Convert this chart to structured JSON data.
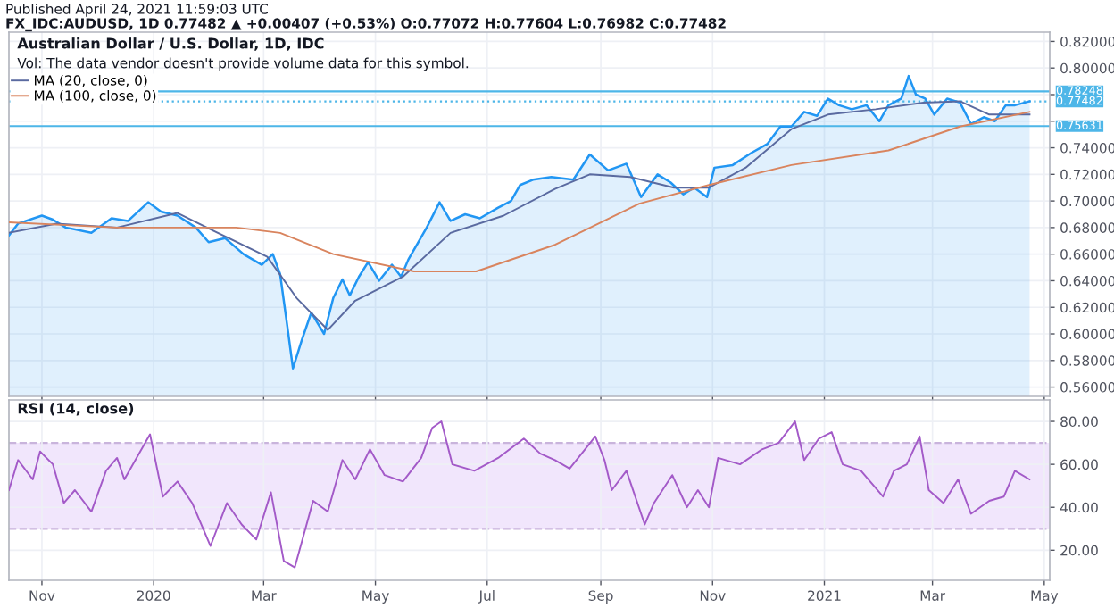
{
  "chart_data": [
    {
      "type": "area",
      "title": "Australian Dollar / U.S. Dollar, 1D, IDC",
      "subtitle": "Vol: The data vendor doesn't provide volume data for this symbol.",
      "annotations": [
        "Published April 24, 2021 11:59:03 UTC",
        "FX_IDC:AUDUSD, 1D 0.77482 ▲ +0.00407 (+0.53%) O:0.77072 H:0.77604 L:0.76982 C:0.77482"
      ],
      "series": [
        {
          "type": "area",
          "color": "#2196f3",
          "x": [
            "2019-10-14",
            "2019-10-19",
            "2019-11-01",
            "2019-11-07",
            "2019-11-14",
            "2019-11-28",
            "2019-12-09",
            "2019-12-18",
            "2019-12-29",
            "2020-01-05",
            "2020-01-14",
            "2020-01-24",
            "2020-01-31",
            "2020-02-09",
            "2020-02-19",
            "2020-02-29",
            "2020-03-06",
            "2020-03-10",
            "2020-03-14",
            "2020-03-17",
            "2020-03-22",
            "2020-03-27",
            "2020-04-03",
            "2020-04-08",
            "2020-04-13",
            "2020-04-17",
            "2020-04-22",
            "2020-04-27",
            "2020-05-03",
            "2020-05-10",
            "2020-05-15",
            "2020-05-19",
            "2020-05-29",
            "2020-06-05",
            "2020-06-11",
            "2020-06-19",
            "2020-06-27",
            "2020-07-07",
            "2020-07-14",
            "2020-07-19",
            "2020-07-26",
            "2020-08-05",
            "2020-08-17",
            "2020-08-26",
            "2020-09-05",
            "2020-09-15",
            "2020-09-23",
            "2020-10-02",
            "2020-10-09",
            "2020-10-16",
            "2020-10-22",
            "2020-10-29",
            "2020-11-02",
            "2020-11-12",
            "2020-11-22",
            "2020-12-01",
            "2020-12-08",
            "2020-12-14",
            "2020-12-21",
            "2020-12-28",
            "2021-01-03",
            "2021-01-09",
            "2021-01-16",
            "2021-01-24",
            "2021-01-31",
            "2021-02-05",
            "2021-02-12",
            "2021-02-16",
            "2021-02-20",
            "2021-02-25",
            "2021-03-02",
            "2021-03-09",
            "2021-03-16",
            "2021-03-22",
            "2021-03-29",
            "2021-04-04",
            "2021-04-10",
            "2021-04-15",
            "2021-04-23"
          ],
          "values": [
            0.674,
            0.683,
            0.689,
            0.686,
            0.68,
            0.676,
            0.687,
            0.685,
            0.699,
            0.692,
            0.689,
            0.68,
            0.669,
            0.672,
            0.66,
            0.652,
            0.66,
            0.645,
            0.605,
            0.574,
            0.596,
            0.616,
            0.6,
            0.627,
            0.641,
            0.629,
            0.643,
            0.654,
            0.64,
            0.652,
            0.643,
            0.656,
            0.68,
            0.699,
            0.685,
            0.69,
            0.687,
            0.695,
            0.7,
            0.712,
            0.716,
            0.718,
            0.716,
            0.735,
            0.723,
            0.728,
            0.703,
            0.72,
            0.714,
            0.705,
            0.71,
            0.703,
            0.725,
            0.727,
            0.736,
            0.743,
            0.756,
            0.756,
            0.767,
            0.764,
            0.777,
            0.772,
            0.769,
            0.772,
            0.76,
            0.772,
            0.777,
            0.794,
            0.78,
            0.777,
            0.765,
            0.777,
            0.774,
            0.758,
            0.763,
            0.76,
            0.772,
            0.772,
            0.775
          ]
        },
        {
          "type": "line",
          "name": "MA (20, close, 0)",
          "color": "#5a6aa0",
          "x": [
            "2019-10-14",
            "2019-11-09",
            "2019-12-12",
            "2020-01-14",
            "2020-02-02",
            "2020-03-03",
            "2020-03-19",
            "2020-04-05",
            "2020-04-20",
            "2020-05-16",
            "2020-06-11",
            "2020-07-10",
            "2020-08-07",
            "2020-08-26",
            "2020-09-17",
            "2020-10-11",
            "2020-10-30",
            "2020-11-19",
            "2020-12-14",
            "2021-01-03",
            "2021-01-29",
            "2021-02-24",
            "2021-03-16",
            "2021-04-01",
            "2021-04-23"
          ],
          "values": [
            0.676,
            0.683,
            0.68,
            0.691,
            0.678,
            0.658,
            0.627,
            0.603,
            0.625,
            0.643,
            0.676,
            0.689,
            0.709,
            0.72,
            0.718,
            0.71,
            0.71,
            0.725,
            0.754,
            0.765,
            0.769,
            0.774,
            0.775,
            0.765,
            0.765
          ]
        },
        {
          "type": "line",
          "name": "MA (100, close, 0)",
          "color": "#d9845e",
          "x": [
            "2019-10-14",
            "2019-12-12",
            "2020-02-15",
            "2020-03-10",
            "2020-04-08",
            "2020-05-22",
            "2020-06-25",
            "2020-08-07",
            "2020-09-22",
            "2020-10-30",
            "2020-12-14",
            "2021-02-05",
            "2021-03-16",
            "2021-04-23"
          ],
          "values": [
            0.684,
            0.68,
            0.68,
            0.676,
            0.66,
            0.647,
            0.647,
            0.667,
            0.698,
            0.712,
            0.727,
            0.738,
            0.756,
            0.767
          ]
        }
      ],
      "xlim": [
        "2019-10-14",
        "2021-05-04"
      ],
      "xticks": [
        {
          "value": "2019-11-01",
          "label": null
        },
        {
          "value": "2020-01-01",
          "label": null
        },
        {
          "value": "2020-03-01",
          "label": null
        },
        {
          "value": "2020-05-01",
          "label": null
        },
        {
          "value": "2020-07-01",
          "label": null
        },
        {
          "value": "2020-09-01",
          "label": null
        },
        {
          "value": "2020-11-01",
          "label": null
        },
        {
          "value": "2021-01-01",
          "label": null
        },
        {
          "value": "2021-03-01",
          "label": null
        },
        {
          "value": "2021-05-01",
          "label": null
        }
      ],
      "ylim": [
        0.553,
        0.827
      ],
      "yticks": [
        {
          "value": 0.56,
          "label": "0.56000"
        },
        {
          "value": 0.58,
          "label": "0.58000"
        },
        {
          "value": 0.6,
          "label": "0.60000"
        },
        {
          "value": 0.62,
          "label": "0.62000"
        },
        {
          "value": 0.64,
          "label": "0.64000"
        },
        {
          "value": 0.66,
          "label": "0.66000"
        },
        {
          "value": 0.68,
          "label": "0.68000"
        },
        {
          "value": 0.7,
          "label": "0.70000"
        },
        {
          "value": 0.72,
          "label": "0.72000"
        },
        {
          "value": 0.74,
          "label": "0.74000"
        },
        {
          "value": 0.76,
          "label": null
        },
        {
          "value": 0.78,
          "label": null
        },
        {
          "value": 0.8,
          "label": "0.80000"
        },
        {
          "value": 0.82,
          "label": "0.82000"
        }
      ],
      "ref_lines": [
        {
          "axis": "y",
          "value": 0.78248,
          "label": "0.78248",
          "color": "#4db6e8",
          "line_style": "solid"
        },
        {
          "axis": "y",
          "value": 0.77482,
          "label": "0.77482",
          "color": "#4db6e8",
          "line_style": "dotted"
        },
        {
          "axis": "y",
          "value": 0.75631,
          "label": "0.75631",
          "color": "#4db6e8",
          "line_style": "solid"
        }
      ],
      "grid": true,
      "legend": "top left",
      "tick_labels": "y"
    },
    {
      "type": "line",
      "title": "RSI (14, close)",
      "series": [
        {
          "color": "#a35ac8",
          "x": [
            "2019-10-14",
            "2019-10-19",
            "2019-10-27",
            "2019-10-31",
            "2019-11-07",
            "2019-11-13",
            "2019-11-19",
            "2019-11-28",
            "2019-12-06",
            "2019-12-12",
            "2019-12-16",
            "2019-12-30",
            "2020-01-06",
            "2020-01-14",
            "2020-01-22",
            "2020-02-01",
            "2020-02-10",
            "2020-02-18",
            "2020-02-26",
            "2020-03-05",
            "2020-03-12",
            "2020-03-18",
            "2020-03-28",
            "2020-04-05",
            "2020-04-13",
            "2020-04-20",
            "2020-04-28",
            "2020-05-06",
            "2020-05-16",
            "2020-05-26",
            "2020-06-01",
            "2020-06-06",
            "2020-06-12",
            "2020-06-24",
            "2020-07-07",
            "2020-07-21",
            "2020-07-30",
            "2020-08-07",
            "2020-08-15",
            "2020-08-29",
            "2020-09-03",
            "2020-09-07",
            "2020-09-15",
            "2020-09-25",
            "2020-09-30",
            "2020-10-10",
            "2020-10-18",
            "2020-10-24",
            "2020-10-30",
            "2020-11-04",
            "2020-11-16",
            "2020-11-28",
            "2020-12-07",
            "2020-12-16",
            "2020-12-21",
            "2020-12-29",
            "2021-01-05",
            "2021-01-11",
            "2021-01-21",
            "2021-02-02",
            "2021-02-08",
            "2021-02-15",
            "2021-02-22",
            "2021-02-27",
            "2021-03-07",
            "2021-03-15",
            "2021-03-22",
            "2021-04-01",
            "2021-04-09",
            "2021-04-15",
            "2021-04-23"
          ],
          "values": [
            48,
            62,
            53,
            66,
            60,
            42,
            48,
            38,
            57,
            63,
            53,
            74,
            45,
            52,
            42,
            22,
            42,
            32,
            25,
            47,
            15,
            12,
            43,
            38,
            62,
            53,
            67,
            55,
            52,
            63,
            77,
            80,
            60,
            57,
            63,
            72,
            65,
            62,
            58,
            73,
            62,
            48,
            57,
            32,
            42,
            55,
            40,
            48,
            40,
            63,
            60,
            67,
            70,
            80,
            62,
            72,
            75,
            60,
            57,
            45,
            57,
            60,
            73,
            48,
            42,
            53,
            37,
            43,
            45,
            57,
            53
          ]
        }
      ],
      "xlim": [
        "2019-10-14",
        "2021-05-04"
      ],
      "xticks": [
        {
          "value": "2019-11-01",
          "label": "Nov"
        },
        {
          "value": "2020-01-01",
          "label": "2020"
        },
        {
          "value": "2020-03-01",
          "label": "Mar"
        },
        {
          "value": "2020-05-01",
          "label": "May"
        },
        {
          "value": "2020-07-01",
          "label": "Jul"
        },
        {
          "value": "2020-09-01",
          "label": "Sep"
        },
        {
          "value": "2020-11-01",
          "label": "Nov"
        },
        {
          "value": "2021-01-01",
          "label": "2021"
        },
        {
          "value": "2021-03-01",
          "label": "Mar"
        },
        {
          "value": "2021-05-01",
          "label": "May"
        }
      ],
      "ylim": [
        6,
        90
      ],
      "yticks": [
        {
          "value": 20,
          "label": "20.00"
        },
        {
          "value": 40,
          "label": "40.00"
        },
        {
          "value": 60,
          "label": "60.00"
        },
        {
          "value": 80,
          "label": "80.00"
        }
      ],
      "bands": [
        {
          "axis": "y",
          "from": 30,
          "to": 70,
          "color": "#f1e6fc"
        }
      ],
      "ref_lines": [
        {
          "axis": "y",
          "value": 30,
          "color": "#c9b4dc",
          "line_style": "dashed"
        },
        {
          "axis": "y",
          "value": 70,
          "color": "#c9b4dc",
          "line_style": "dashed"
        }
      ],
      "grid": true
    }
  ]
}
